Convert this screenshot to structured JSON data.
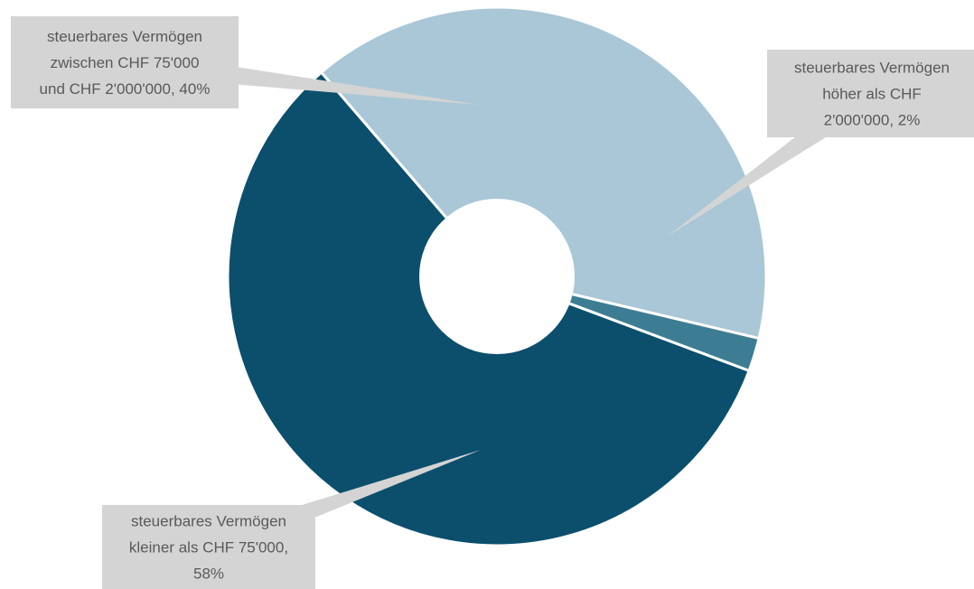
{
  "chart_data": {
    "type": "pie",
    "variant": "doughnut",
    "title": "",
    "slices": [
      {
        "label": "steuerbares Vermögen kleiner als CHF 75'000",
        "value": 58,
        "display_lines": [
          "steuerbares Vermögen",
          "kleiner als CHF 75'000,",
          "58%"
        ],
        "color": "#0b4f6c"
      },
      {
        "label": "steuerbares Vermögen zwischen CHF 75'000 und CHF 2'000'000",
        "value": 40,
        "display_lines": [
          "steuerbares Vermögen",
          "zwischen CHF 75'000",
          "und CHF 2'000'000, 40%"
        ],
        "color": "#a9c7d6"
      },
      {
        "label": "steuerbares Vermögen höher als CHF 2'000'000",
        "value": 2,
        "display_lines": [
          "steuerbares Vermögen",
          "höher als CHF",
          "2'000'000, 2%"
        ],
        "color": "#3d7d93"
      }
    ],
    "unit": "%",
    "legend": "none",
    "data_labels": "callouts"
  }
}
